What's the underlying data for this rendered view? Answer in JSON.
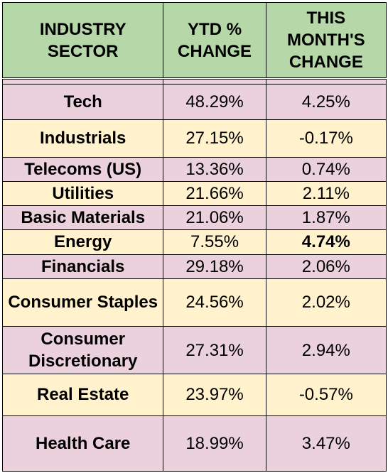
{
  "headers": [
    "INDUSTRY SECTOR",
    "YTD % CHANGE",
    "THIS MONTH'S CHANGE"
  ],
  "rows": [
    {
      "sector": "Tech",
      "ytd": "48.29%",
      "month": "4.25%"
    },
    {
      "sector": "Industrials",
      "ytd": "27.15%",
      "month": "-0.17%"
    },
    {
      "sector": "Telecoms (US)",
      "ytd": "13.36%",
      "month": "0.74%"
    },
    {
      "sector": "Utilities",
      "ytd": "21.66%",
      "month": "2.11%"
    },
    {
      "sector": "Basic Materials",
      "ytd": "21.06%",
      "month": "1.87%"
    },
    {
      "sector": "Energy",
      "ytd": "7.55%",
      "month": "4.74%"
    },
    {
      "sector": "Financials",
      "ytd": "29.18%",
      "month": "2.06%"
    },
    {
      "sector": "Consumer Staples",
      "ytd": "24.56%",
      "month": "2.02%"
    },
    {
      "sector": "Consumer Discretionary",
      "ytd": "27.31%",
      "month": "2.94%"
    },
    {
      "sector": "Real Estate",
      "ytd": "23.97%",
      "month": "-0.57%"
    },
    {
      "sector": "Health Care",
      "ytd": "18.99%",
      "month": "3.47%"
    }
  ],
  "colors": {
    "header_bg": "#b6d7a8",
    "row_pink": "#ead1dc",
    "row_yellow": "#fff2cc"
  }
}
